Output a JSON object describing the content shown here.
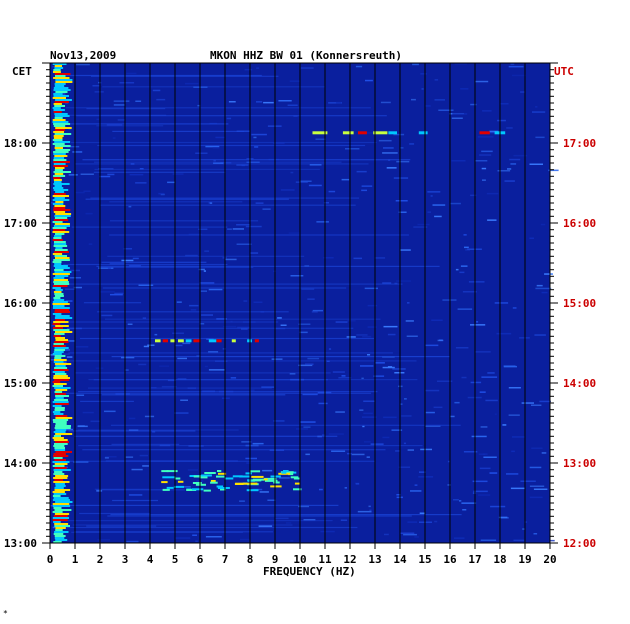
{
  "chart_data": {
    "type": "heatmap",
    "date": "Nov13,2009",
    "title": "MKON HHZ BW 01 (Konnersreuth)",
    "xlabel": "FREQUENCY (HZ)",
    "left_axis_label": "CET",
    "right_axis_label": "UTC",
    "xlim": [
      0,
      20
    ],
    "x_ticks": [
      "0",
      "1",
      "2",
      "3",
      "4",
      "5",
      "6",
      "7",
      "8",
      "9",
      "10",
      "11",
      "12",
      "13",
      "14",
      "15",
      "16",
      "17",
      "18",
      "19",
      "20"
    ],
    "cet_ticks": [
      "18:00",
      "17:00",
      "16:00",
      "15:00",
      "14:00",
      "13:00"
    ],
    "utc_ticks": [
      "17:00",
      "16:00",
      "15:00",
      "14:00",
      "13:00",
      "12:00"
    ],
    "y_range_cet": [
      "13:00",
      "19:00"
    ],
    "colors": {
      "background": "#0a1f9e",
      "grid": "#000000",
      "axis_text": "#000000",
      "utc_text": "#cc0000"
    },
    "features": [
      {
        "name": "low-frequency band",
        "freq_hz": [
          0.1,
          0.8
        ],
        "time_cet": [
          "13:00",
          "19:00"
        ]
      },
      {
        "name": "event line",
        "freq_hz": [
          10.5,
          19.0
        ],
        "time_cet": "18:08"
      },
      {
        "name": "event line",
        "freq_hz": [
          4.2,
          8.5
        ],
        "time_cet": "15:32"
      },
      {
        "name": "burst patch",
        "freq_hz": [
          4.4,
          9.8
        ],
        "time_cet": [
          "13:40",
          "13:55"
        ]
      }
    ]
  },
  "corner_mark": "*"
}
